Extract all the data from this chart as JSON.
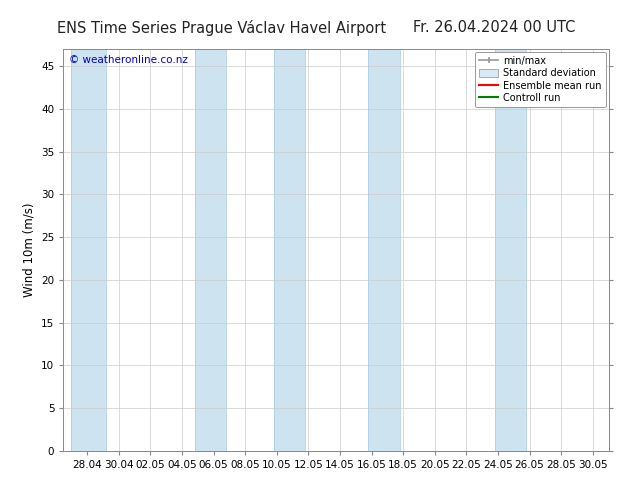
{
  "title_left": "ENS Time Series Prague Václav Havel Airport",
  "title_right": "Fr. 26.04.2024 00 UTC",
  "ylabel": "Wind 10m (m/s)",
  "watermark": "© weatheronline.co.nz",
  "ylim": [
    0,
    47
  ],
  "yticks": [
    0,
    5,
    10,
    15,
    20,
    25,
    30,
    35,
    40,
    45
  ],
  "background_color": "#ffffff",
  "plot_bg_color": "#ffffff",
  "band_color": "#cde3f0",
  "band_edge_color": "#b0cfe6",
  "x_labels": [
    "28.04",
    "30.04",
    "02.05",
    "04.05",
    "06.05",
    "08.05",
    "10.05",
    "12.05",
    "14.05",
    "16.05",
    "18.05",
    "20.05",
    "22.05",
    "24.05",
    "26.05",
    "28.05",
    "30.05"
  ],
  "x_positions": [
    0,
    2,
    4,
    6,
    8,
    10,
    12,
    14,
    16,
    18,
    20,
    22,
    24,
    26,
    28,
    30,
    32
  ],
  "band_params": [
    [
      -1.0,
      2.2
    ],
    [
      6.8,
      2.0
    ],
    [
      11.8,
      2.0
    ],
    [
      17.8,
      2.0
    ],
    [
      25.8,
      2.0
    ]
  ],
  "legend_labels": [
    "min/max",
    "Standard deviation",
    "Ensemble mean run",
    "Controll run"
  ],
  "legend_colors_line": [
    "#999999",
    "#cccccc",
    "#ff0000",
    "#008000"
  ],
  "watermark_color": "#0000cc",
  "title_fontsize": 10.5,
  "tick_label_fontsize": 7.5,
  "ylabel_fontsize": 8.5,
  "grid_color": "#cccccc",
  "spine_color": "#888888",
  "x_min": -1.5,
  "x_max": 33.0
}
